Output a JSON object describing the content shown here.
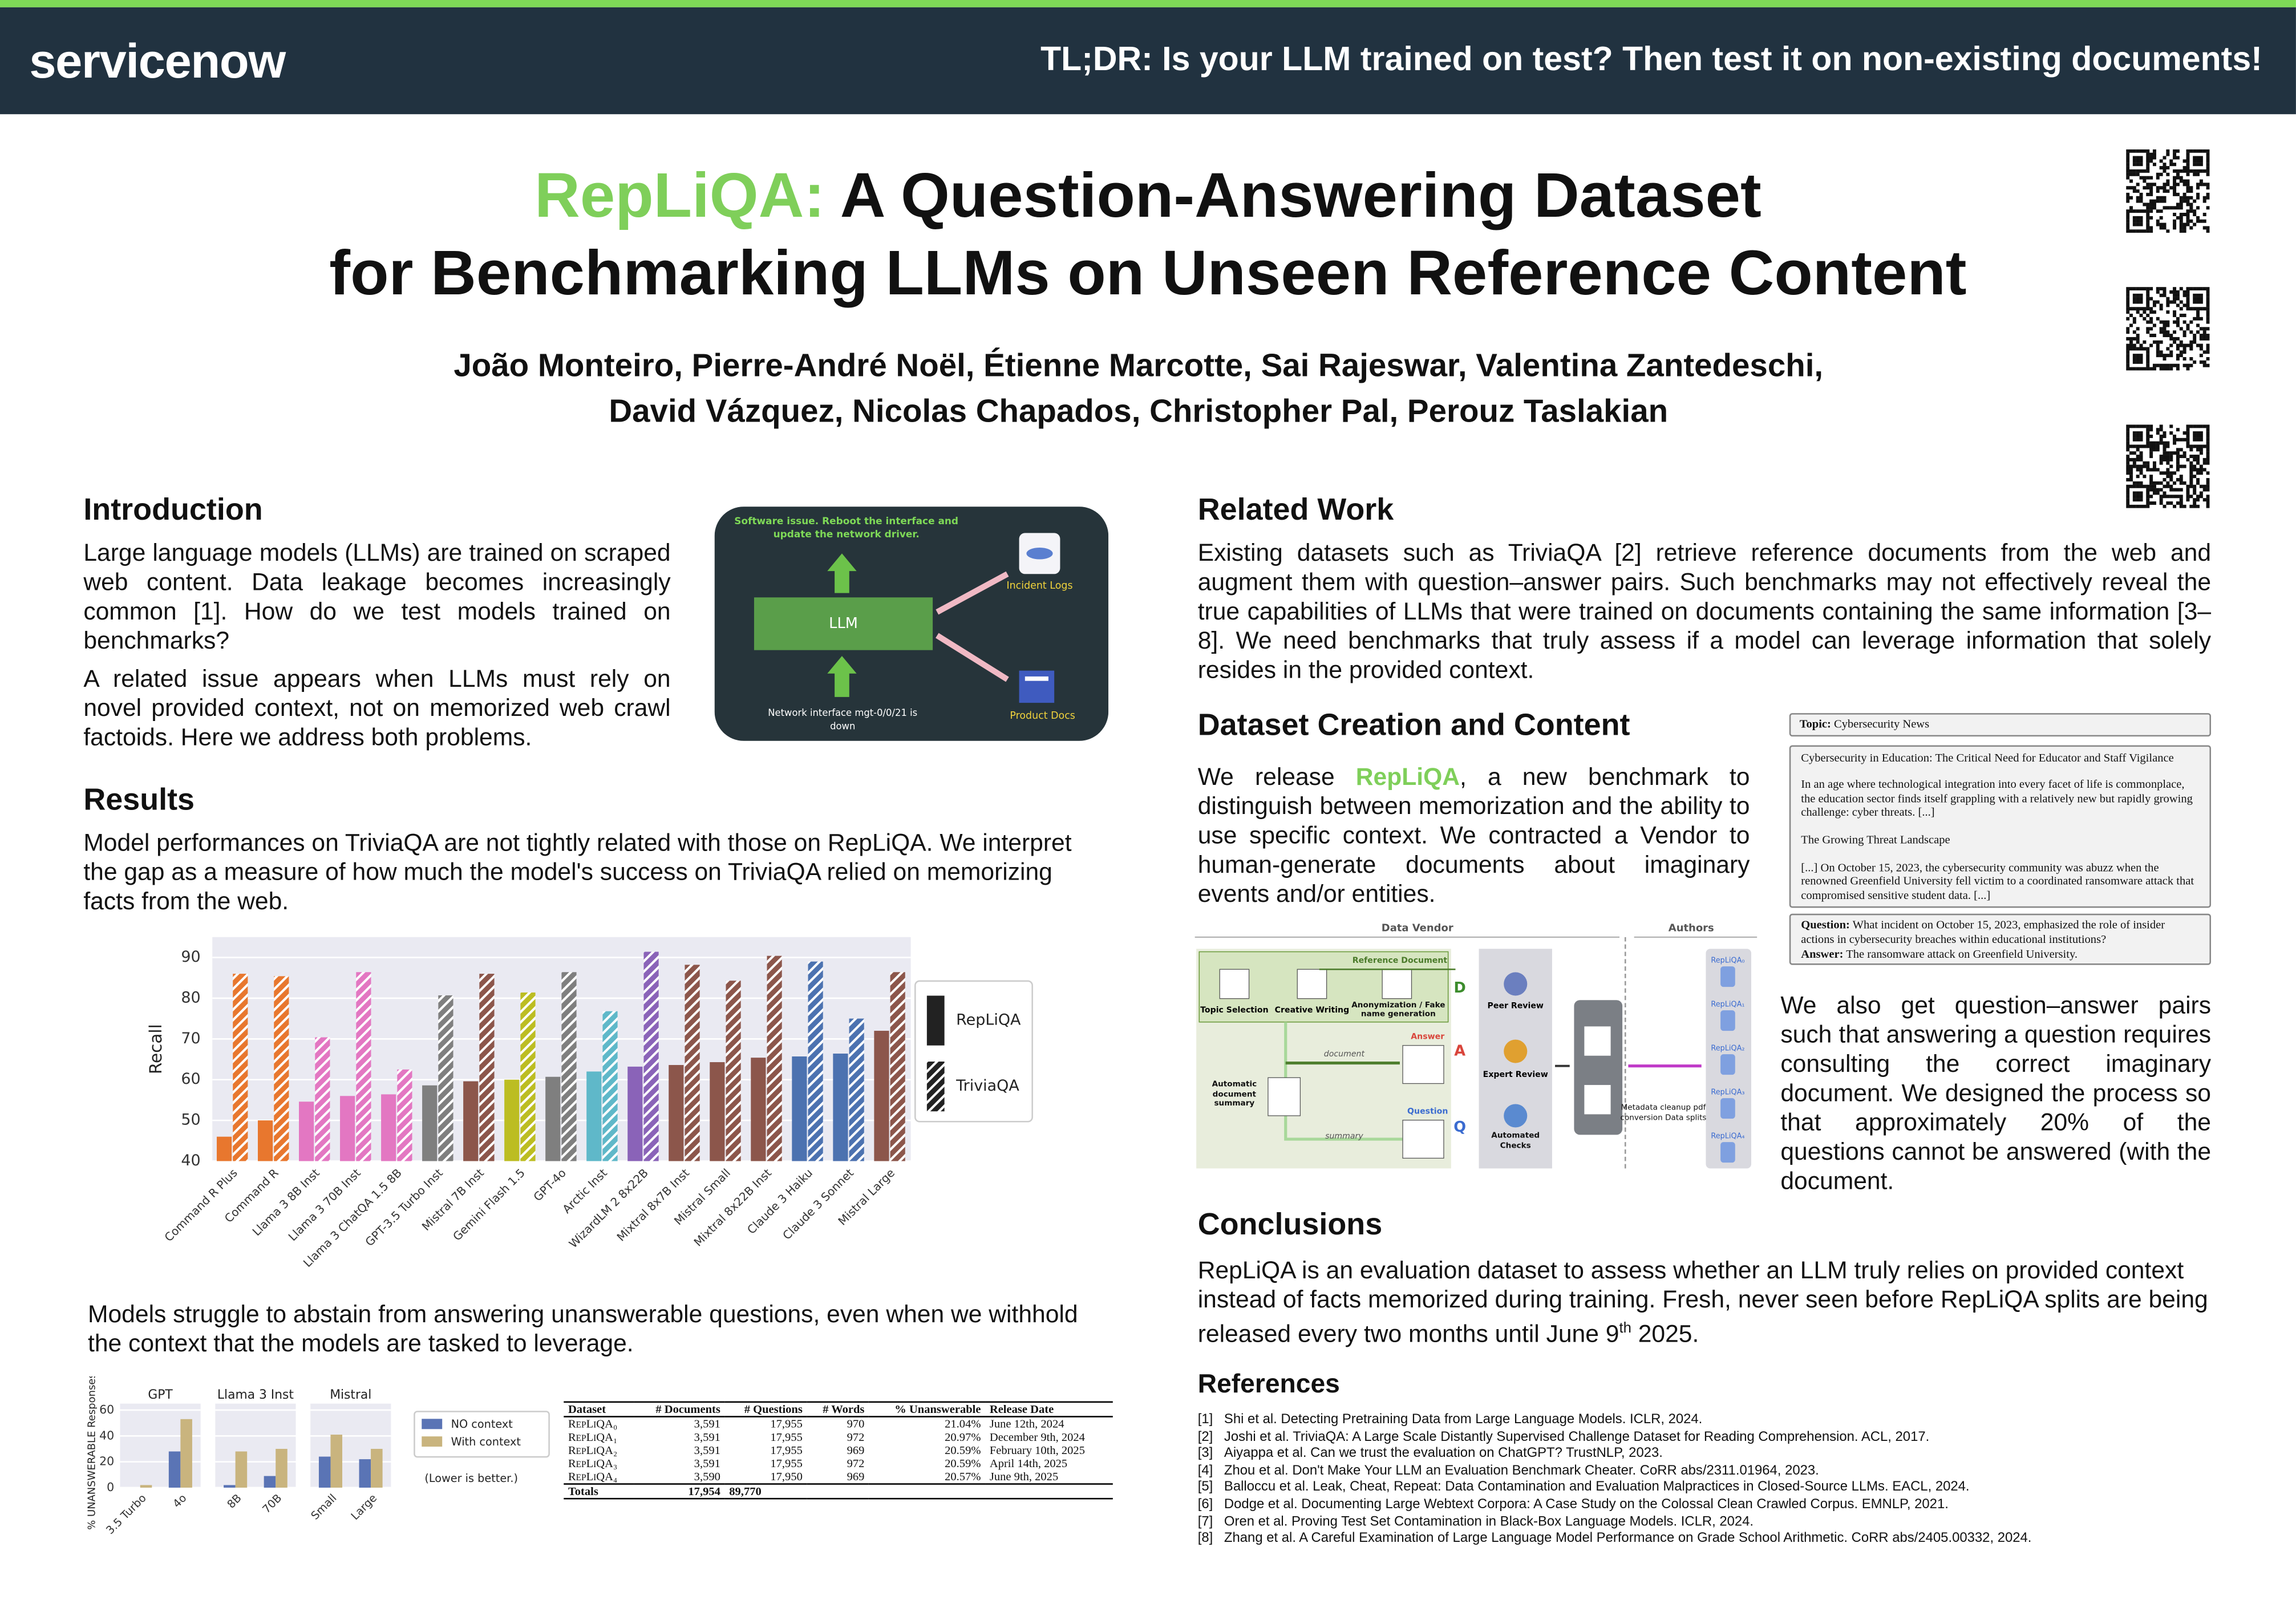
{
  "header": {
    "logo": "servicenow",
    "tldr": "TL;DR: Is your LLM trained on test? Then test it on non-existing documents!"
  },
  "title": {
    "highlight": "RepLiQA:",
    "line1": "A Question-Answering Dataset",
    "line2": "for Benchmarking LLMs on Unseen Reference Content"
  },
  "authors": [
    "João Monteiro, Pierre-André Noël, Étienne Marcotte, Sai Rajeswar, Valentina Zantedeschi,",
    "David Vázquez, Nicolas Chapados, Christopher Pal, Perouz Taslakian"
  ],
  "introduction": {
    "heading": "Introduction",
    "paragraphs": [
      "Large language models (LLMs) are trained on scraped web content. Data leakage becomes increasingly common [1]. How do we test models trained on benchmarks?",
      "A related issue appears when LLMs must rely on novel provided context, not on memorized web crawl factoids. Here we address both problems."
    ],
    "diagram": {
      "prompt": "Software issue.  Reboot the interface and update the network driver.",
      "llm": "LLM",
      "incident_logs": "Incident Logs",
      "product_docs": "Product Docs",
      "input": "Network interface mgt-0/0/21 is down"
    }
  },
  "results": {
    "heading": "Results",
    "paragraphs": [
      "Model performances on TriviaQA are not tightly related with those on RepLiQA. We interpret the gap as a measure of how much the model's success on TriviaQA relied on memorizing facts from the web.",
      "Models struggle to abstain from answering unanswerable questions, even when we withhold the context that the models are tasked to leverage."
    ]
  },
  "table": {
    "columns": [
      "Dataset",
      "# Documents",
      "# Questions",
      "# Words",
      "% Unanswerable",
      "Release Date"
    ],
    "rows": [
      [
        "RepLiQA₀",
        "3,591",
        "17,955",
        "970",
        "21.04%",
        "June 12th, 2024"
      ],
      [
        "RepLiQA₁",
        "3,591",
        "17,955",
        "972",
        "20.97%",
        "December 9th, 2024"
      ],
      [
        "RepLiQA₂",
        "3,591",
        "17,955",
        "969",
        "20.59%",
        "February 10th, 2025"
      ],
      [
        "RepLiQA₃",
        "3,591",
        "17,955",
        "972",
        "20.59%",
        "April 14th, 2025"
      ],
      [
        "RepLiQA₄",
        "3,590",
        "17,950",
        "969",
        "20.57%",
        "June 9th, 2025"
      ]
    ],
    "totals": [
      "Totals",
      "17,954",
      "89,770"
    ]
  },
  "related_work": {
    "heading": "Related Work",
    "text": "Existing datasets such as TriviaQA [2] retrieve reference documents from the web and augment them with question–answer pairs. Such benchmarks may not effectively reveal the true capabilities of LLMs that were trained on documents containing the same information [3–8]. We need benchmarks that truly assess if a model can leverage information that solely resides in the provided context."
  },
  "dataset": {
    "heading": "Dataset Creation and Content",
    "text_before": "We release ",
    "text_highlight": "RepLiQA",
    "text_after": ", a new benchmark to distinguish between memorization and the ability to use specific context. We contracted a Vendor to human-generate documents about imaginary events and/or entities.",
    "text2": "We also get question–answer pairs such that answering a question requires consulting the correct imaginary document. We designed the process so that approximately 20% of the questions cannot be answered (with the document.",
    "example": {
      "topic_label": "Topic:",
      "topic": "Cybersecurity News",
      "doc_title": "Cybersecurity in Education: The Critical Need for Educator and Staff Vigilance",
      "doc_paragraphs": [
        "In an age where technological integration into every facet of life is commonplace, the education sector finds itself grappling with a relatively new but rapidly growing challenge: cyber threats. [...]",
        "The Growing Threat Landscape",
        "[...] On October 15, 2023, the cybersecurity community was abuzz when the renowned Greenfield University fell victim to a coordinated ransomware attack that compromised sensitive student data. [...]"
      ],
      "question_label": "Question:",
      "question": "What incident on October 15, 2023, emphasized the role of insider actions in cybersecurity breaches within educational institutions?",
      "answer_label": "Answer:",
      "answer": "The ransomware attack on Greenfield University."
    },
    "pipeline": {
      "vendor": "Data Vendor",
      "authors": "Authors",
      "reference_document": "Reference Document",
      "topic_selection": "Topic Selection",
      "creative_writing": "Creative Writing",
      "anonymization": "Anonymization / Fake name generation",
      "d": "D",
      "a": "A",
      "q": "Q",
      "document": "document",
      "summary": "summary",
      "auto_summary": "Automatic document summary",
      "answer": "Answer",
      "question": "Question",
      "peer_review": "Peer Review",
      "expert_review": "Expert Review",
      "automated_checks": "Automated Checks",
      "postprocess": "Metadata cleanup pdf conversion Data splits",
      "splits": [
        "RepLiQA₀",
        "RepLiQA₁",
        "RepLiQA₂",
        "RepLiQA₃",
        "RepLiQA₄"
      ]
    }
  },
  "conclusions": {
    "heading": "Conclusions",
    "text": "RepLiQA is an evaluation dataset to assess whether an LLM truly relies on provided context instead of facts memorized during training. Fresh, never seen before RepLiQA splits are being released every two months until June 9",
    "sup": "th",
    "end": " 2025."
  },
  "references": {
    "heading": "References",
    "items": [
      {
        "num": "[1]",
        "text": "Shi et al. Detecting Pretraining Data from Large Language Models. ICLR, 2024."
      },
      {
        "num": "[2]",
        "text": "Joshi et al. TriviaQA: A Large Scale Distantly Supervised Challenge Dataset for Reading Comprehension. ACL, 2017."
      },
      {
        "num": "[3]",
        "text": "Aiyappa et al. Can we trust the evaluation on ChatGPT? TrustNLP, 2023."
      },
      {
        "num": "[4]",
        "text": "Zhou et al. Don't Make Your LLM an Evaluation Benchmark Cheater. CoRR abs/2311.01964, 2023."
      },
      {
        "num": "[5]",
        "text": "Balloccu et al. Leak, Cheat, Repeat: Data Contamination and Evaluation Malpractices in Closed-Source LLMs. EACL, 2024."
      },
      {
        "num": "[6]",
        "text": "Dodge et al. Documenting Large Webtext Corpora: A Case Study on the Colossal Clean Crawled Corpus. EMNLP, 2021."
      },
      {
        "num": "[7]",
        "text": "Oren et al. Proving Test Set Contamination in Black-Box Language Models. ICLR, 2024."
      },
      {
        "num": "[8]",
        "text": "Zhang et al. A Careful Examination of Large Language Model Performance on Grade School Arithmetic. CoRR abs/2405.00332, 2024."
      }
    ]
  },
  "chart_data": [
    {
      "type": "bar",
      "ylabel": "Recall",
      "categories": [
        "Command R Plus",
        "Command R",
        "Llama 3 8B Inst",
        "Llama 3 70B Inst",
        "Llama 3 ChatQA 1.5 8B",
        "GPT-3.5 Turbo Inst",
        "Mistral 7B Inst",
        "Gemini Flash 1.5",
        "GPT-4o",
        "Arctic Inst",
        "WizardLM 2 8x22B",
        "Mixtral 8x7B Inst",
        "Mistral Small",
        "Mixtral 8x22B Inst",
        "Claude 3 Haiku",
        "Claude 3 Sonnet",
        "Mistral Large"
      ],
      "colors": [
        "#e8772e",
        "#e8772e",
        "#e377c2",
        "#e377c2",
        "#e377c2",
        "#7f7f7f",
        "#8c564b",
        "#bcbd22",
        "#7f7f7f",
        "#5fb8c9",
        "#8a63b8",
        "#8c564b",
        "#8c564b",
        "#8c564b",
        "#4c72b0",
        "#4c72b0",
        "#8c564b"
      ],
      "series": [
        {
          "name": "RepLiQA",
          "color": "#222222",
          "hatch": false,
          "values": [
            46,
            50,
            54.6,
            56,
            56.4,
            58.6,
            59.6,
            60,
            60.7,
            62,
            63.2,
            63.6,
            64.3,
            65.4,
            65.7,
            66.4,
            72
          ]
        },
        {
          "name": "TriviaQA",
          "color": "#222222",
          "hatch": true,
          "values": [
            86,
            85.4,
            70.4,
            86.4,
            62.5,
            80.7,
            86,
            81.4,
            86.4,
            76.8,
            91.4,
            88.2,
            84.3,
            90.4,
            89,
            75,
            86.4
          ]
        }
      ],
      "ylim": [
        40,
        95
      ],
      "yticks": [
        40,
        50,
        60,
        70,
        80,
        90
      ],
      "grid": true,
      "legend": "right"
    },
    {
      "type": "grouped-panels",
      "ylabel": "% UNANSWERABLE Responses",
      "panels": [
        "GPT",
        "Llama 3 Inst",
        "Mistral"
      ],
      "categories": [
        "3.5 Turbo",
        "4o",
        "8B",
        "70B",
        "Small",
        "Large"
      ],
      "series": [
        {
          "name": "NO context",
          "color": "#5a74b5",
          "values": [
            0,
            28,
            2,
            9,
            24,
            22
          ]
        },
        {
          "name": "With context",
          "color": "#c9b47e",
          "values": [
            2,
            53,
            28,
            30,
            41,
            30
          ]
        }
      ],
      "ylim": [
        0,
        65
      ],
      "yticks": [
        0,
        20,
        40,
        60
      ],
      "grid": true,
      "legend": "right",
      "annotation": "(Lower is better.)"
    }
  ]
}
